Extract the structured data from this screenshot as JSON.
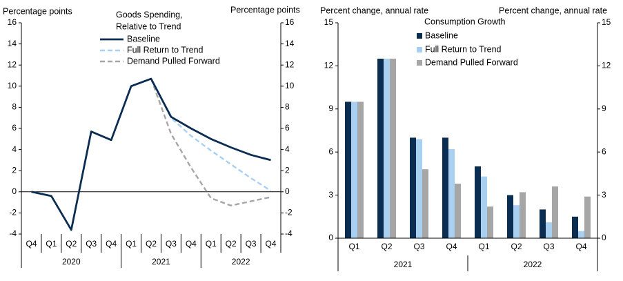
{
  "colors": {
    "baseline": "#0b2d52",
    "full_return": "#a9d0f0",
    "demand_pulled": "#a6a6a6",
    "axis": "#000000"
  },
  "chart_data": [
    {
      "type": "line",
      "title": "Goods Spending, Relative to Trend",
      "title_lines": [
        "Goods Spending,",
        "Relative to Trend"
      ],
      "ylabel_left": "Percentage points",
      "ylabel_right": "Percentage  points",
      "ylim": [
        -4,
        16
      ],
      "yticks": [
        -4,
        -2,
        0,
        2,
        4,
        6,
        8,
        10,
        12,
        14,
        16
      ],
      "categories": [
        "Q4",
        "Q1",
        "Q2",
        "Q3",
        "Q4",
        "Q1",
        "Q2",
        "Q3",
        "Q4",
        "Q1",
        "Q2",
        "Q3",
        "Q4"
      ],
      "year_groups": [
        {
          "label": "2020",
          "start": 0,
          "end": 4
        },
        {
          "label": "2021",
          "start": 5,
          "end": 8
        },
        {
          "label": "2022",
          "start": 9,
          "end": 12
        }
      ],
      "legend_position": "top",
      "series": [
        {
          "name": "Baseline",
          "style": "solid",
          "color_key": "baseline",
          "values": [
            0,
            -0.4,
            -3.6,
            5.7,
            4.9,
            10.0,
            10.7,
            7.1,
            6.0,
            5.0,
            4.2,
            3.5,
            3.0
          ]
        },
        {
          "name": "Full Return to Trend",
          "style": "dashed",
          "color_key": "full_return",
          "values": [
            null,
            null,
            null,
            null,
            null,
            null,
            10.7,
            7.0,
            5.3,
            3.9,
            2.6,
            1.3,
            0.1
          ]
        },
        {
          "name": "Demand Pulled Forward",
          "style": "dashed",
          "color_key": "demand_pulled",
          "values": [
            null,
            null,
            null,
            null,
            null,
            null,
            10.7,
            5.5,
            2.3,
            -0.6,
            -1.3,
            -0.9,
            -0.5
          ]
        }
      ]
    },
    {
      "type": "bar",
      "title": "Consumption Growth",
      "ylabel_left": "Percent change, annual rate",
      "ylabel_right": "Percent change, annual rate",
      "ylim": [
        0,
        15
      ],
      "yticks": [
        0,
        3,
        6,
        9,
        12,
        15
      ],
      "categories": [
        "Q1",
        "Q2",
        "Q3",
        "Q4",
        "Q1",
        "Q2",
        "Q3",
        "Q4"
      ],
      "year_groups": [
        {
          "label": "2021",
          "start": 0,
          "end": 3
        },
        {
          "label": "2022",
          "start": 4,
          "end": 7
        }
      ],
      "legend_position": "top",
      "series": [
        {
          "name": "Baseline",
          "color_key": "baseline",
          "values": [
            9.5,
            12.5,
            7.0,
            7.0,
            5.0,
            3.0,
            2.0,
            1.5
          ]
        },
        {
          "name": "Full Return to Trend",
          "color_key": "full_return",
          "values": [
            9.5,
            12.5,
            6.9,
            6.2,
            4.3,
            2.3,
            1.1,
            0.5
          ]
        },
        {
          "name": "Demand Pulled Forward",
          "color_key": "demand_pulled",
          "values": [
            9.5,
            12.5,
            4.8,
            3.8,
            2.2,
            3.2,
            3.6,
            2.9
          ]
        }
      ]
    }
  ]
}
